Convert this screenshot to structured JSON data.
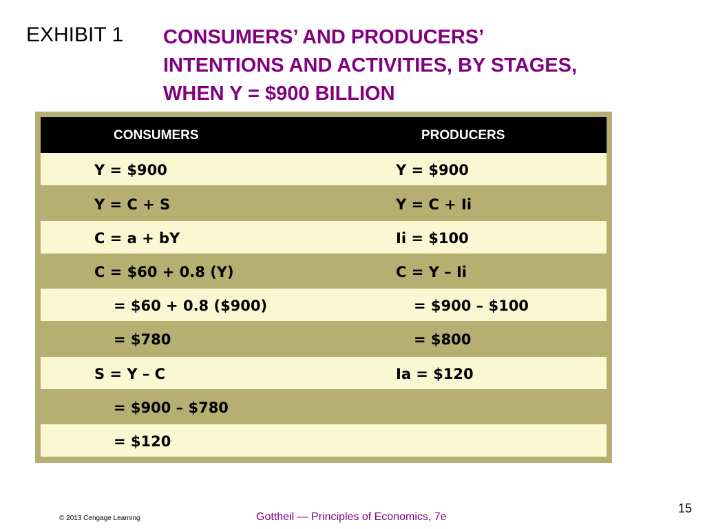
{
  "exhibit_label": "EXHIBIT 1",
  "title_lines": [
    "CONSUMERS’ AND PRODUCERS’",
    "INTENTIONS AND ACTIVITIES, BY STAGES,",
    "WHEN Y = $900 BILLION"
  ],
  "table": {
    "headers": {
      "consumers": "CONSUMERS",
      "producers": "PRODUCERS"
    },
    "rows": [
      {
        "consumers": "Y =  $900",
        "producers": "Y =  $900"
      },
      {
        "consumers": "Y =  C + S",
        "producers": "Y =  C + Ii"
      },
      {
        "consumers": "C =  a + bY",
        "producers": "Ii =  $100"
      },
      {
        "consumers": "C =  $60 + 0.8 (Y)",
        "producers": "C =  Y – Ii"
      },
      {
        "consumers": "=  $60 + 0.8 ($900)",
        "producers": "=  $900 – $100"
      },
      {
        "consumers": "=  $780",
        "producers": "=  $800"
      },
      {
        "consumers": "S =  Y – C",
        "producers": "Ia =  $120"
      },
      {
        "consumers": "=  $900 – $780",
        "producers": ""
      },
      {
        "consumers": "=  $120",
        "producers": ""
      }
    ]
  },
  "footer": {
    "copyright": "© 2013 Cengage Learning",
    "book": "Gottheil — Principles of Economics, 7e",
    "page_number": "15"
  },
  "colors": {
    "title": "#800080",
    "row_light": "#fbf7d3",
    "row_dark": "#b5b072",
    "header_bg": "#000000"
  }
}
